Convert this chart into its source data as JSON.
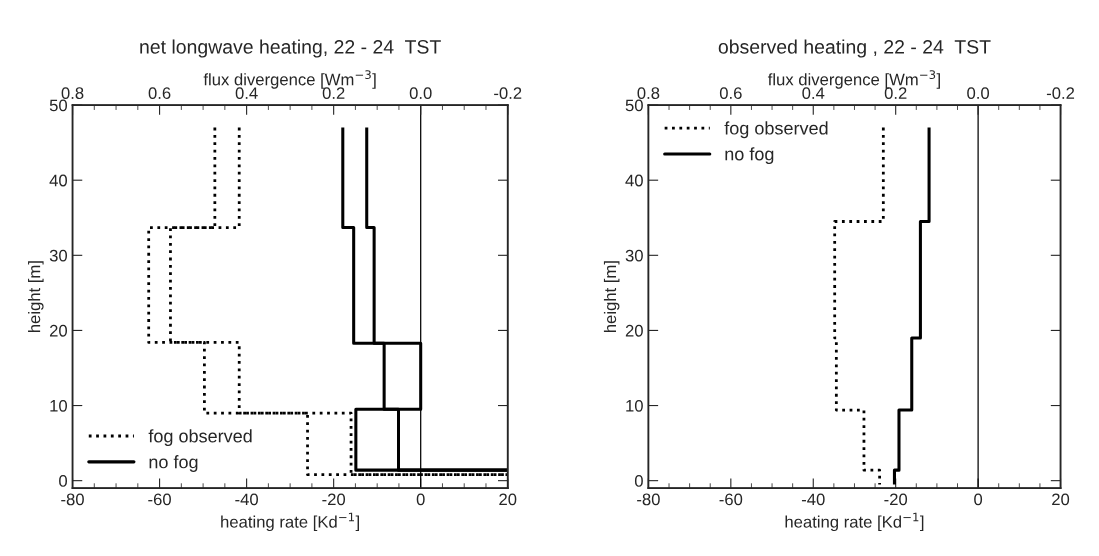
{
  "chart_data": [
    {
      "type": "line",
      "title": "net longwave heating, 22 - 24  TST",
      "xlabel": "heating rate [Kd$^{−1}$]",
      "ylabel": "height [m]",
      "x2label": "flux divergence [Wm$^{−3}$]",
      "xlim": [
        -80,
        20
      ],
      "xticks": [
        -80,
        -60,
        -40,
        -20,
        0,
        20
      ],
      "ylim": [
        -1,
        50
      ],
      "yticks": [
        0,
        10,
        20,
        30,
        40,
        50
      ],
      "x2lim": [
        0.8,
        -0.2
      ],
      "x2ticks": [
        {
          "value": 0.8,
          "label": "0.8"
        },
        {
          "value": 0.6,
          "label": "0.6"
        },
        {
          "value": 0.4,
          "label": "0.4"
        },
        {
          "value": 0.2,
          "label": "0.2"
        },
        {
          "value": 0.0,
          "label": "0.0"
        },
        {
          "value": -0.2,
          "label": "-0.2"
        }
      ],
      "legend": "bottom left",
      "grid": false,
      "marker": "none",
      "ref_lines": [
        {
          "axis": "x",
          "value": 0,
          "color": "#000000",
          "line_style": "solid"
        }
      ],
      "series": [
        {
          "name": "fog observed",
          "color": "#000000",
          "line_style": "dotted",
          "x": [
            -47.3,
            -47.3,
            -62.5,
            -62.5,
            -41.7,
            -41.7,
            -16,
            -16,
            20
          ],
          "values": [
            47,
            33.7,
            33.7,
            18.4,
            18.4,
            9,
            9,
            0.8,
            0.8
          ]
        },
        {
          "color": "#000000",
          "line_style": "dotted",
          "x": [
            -41.7,
            -41.7,
            -57.5,
            -57.5,
            -49.7,
            -49.7,
            -26,
            -26,
            20
          ],
          "values": [
            47,
            33.7,
            33.7,
            18.4,
            18.4,
            9,
            9,
            0.8,
            0.8
          ]
        },
        {
          "name": "no fog",
          "color": "#000000",
          "line_style": "solid",
          "x": [
            -17.9,
            -17.9,
            -15.4,
            -15.4,
            0,
            0,
            -14.9,
            -14.9,
            20
          ],
          "values": [
            47,
            33.7,
            33.7,
            18.3,
            18.3,
            9.5,
            9.5,
            1.4,
            1.4
          ]
        },
        {
          "color": "#000000",
          "line_style": "solid",
          "x": [
            -12.4,
            -12.4,
            -10.7,
            -10.7,
            -8.4,
            -8.4,
            -5.1,
            -5.1,
            20
          ],
          "values": [
            47,
            33.7,
            33.7,
            18.3,
            18.3,
            9.5,
            9.5,
            1.4,
            1.4
          ]
        }
      ]
    },
    {
      "type": "line",
      "title": "observed heating , 22 - 24  TST",
      "xlabel": "heating rate [Kd$^{−1}$]",
      "ylabel": "height [m]",
      "x2label": "flux divergence [Wm$^{−3}$]",
      "xlim": [
        -80,
        20
      ],
      "xticks": [
        -80,
        -60,
        -40,
        -20,
        0,
        20
      ],
      "ylim": [
        -1,
        50
      ],
      "yticks": [
        0,
        10,
        20,
        30,
        40,
        50
      ],
      "x2lim": [
        0.8,
        -0.2
      ],
      "x2ticks": [
        {
          "value": 0.8,
          "label": "0.8"
        },
        {
          "value": 0.6,
          "label": "0.6"
        },
        {
          "value": 0.4,
          "label": "0.4"
        },
        {
          "value": 0.2,
          "label": "0.2"
        },
        {
          "value": 0.0,
          "label": "0.0"
        },
        {
          "value": -0.2,
          "label": "-0.2"
        }
      ],
      "legend": "top left",
      "grid": false,
      "marker": "none",
      "ref_lines": [
        {
          "axis": "x",
          "value": 0,
          "color": "#000000",
          "line_style": "solid"
        }
      ],
      "series": [
        {
          "name": "fog observed",
          "color": "#000000",
          "line_style": "dotted",
          "x": [
            -23,
            -23,
            -34.8,
            -34.8,
            -34.4,
            -34.4,
            -27.7,
            -27.7,
            -23.9,
            -23.9
          ],
          "values": [
            47,
            34.5,
            34.5,
            19,
            19,
            9.4,
            9.4,
            1.4,
            1.4,
            -0.5
          ]
        },
        {
          "name": "no fog",
          "color": "#000000",
          "line_style": "solid",
          "x": [
            -11.9,
            -11.9,
            -14.0,
            -14.0,
            -16.1,
            -16.1,
            -19.2,
            -19.2,
            -20.3,
            -20.3
          ],
          "values": [
            47,
            34.5,
            34.5,
            19,
            19,
            9.4,
            9.4,
            1.4,
            1.4,
            -0.5
          ]
        }
      ]
    }
  ]
}
